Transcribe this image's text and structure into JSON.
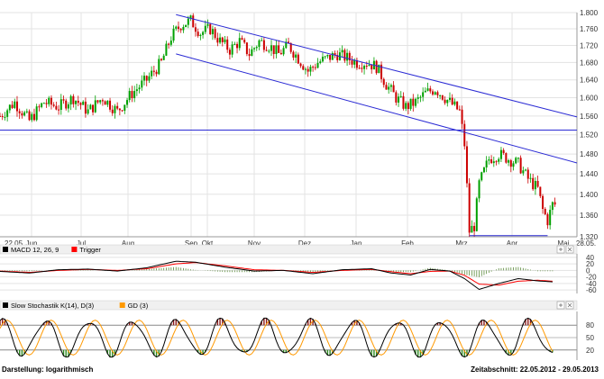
{
  "chart_data": [
    {
      "type": "candlestick",
      "scale": "log",
      "x_labels": [
        "22.05.",
        "Jun",
        "Jul",
        "Aug",
        "Sep",
        "Okt",
        "Nov",
        "Dez",
        "Jan",
        "Feb",
        "Mrz",
        "Apr",
        "Mai",
        "28.05."
      ],
      "y_ticks": [
        "1.320",
        "1.360",
        "1.400",
        "1.440",
        "1.480",
        "1.520",
        "1.560",
        "1.600",
        "1.640",
        "1.680",
        "1.720",
        "1.760",
        "1.800"
      ],
      "ylim": [
        1.32,
        1.8
      ],
      "grid": true,
      "price_path": [
        [
          0,
          1.56
        ],
        [
          3,
          1.59
        ],
        [
          6,
          1.55
        ],
        [
          9,
          1.59
        ],
        [
          12,
          1.58
        ],
        [
          15,
          1.6
        ],
        [
          18,
          1.57
        ],
        [
          21,
          1.6
        ],
        [
          24,
          1.57
        ],
        [
          27,
          1.61
        ],
        [
          30,
          1.64
        ],
        [
          33,
          1.68
        ],
        [
          35,
          1.74
        ],
        [
          37,
          1.77
        ],
        [
          39,
          1.78
        ],
        [
          41,
          1.75
        ],
        [
          43,
          1.76
        ],
        [
          45,
          1.73
        ],
        [
          47,
          1.71
        ],
        [
          49,
          1.73
        ],
        [
          51,
          1.7
        ],
        [
          53,
          1.73
        ],
        [
          55,
          1.72
        ],
        [
          57,
          1.7
        ],
        [
          59,
          1.72
        ],
        [
          61,
          1.69
        ],
        [
          63,
          1.66
        ],
        [
          65,
          1.68
        ],
        [
          67,
          1.69
        ],
        [
          69,
          1.7
        ],
        [
          71,
          1.69
        ],
        [
          73,
          1.68
        ],
        [
          75,
          1.68
        ],
        [
          77,
          1.67
        ],
        [
          79,
          1.63
        ],
        [
          81,
          1.6
        ],
        [
          83,
          1.58
        ],
        [
          85,
          1.59
        ],
        [
          87,
          1.61
        ],
        [
          89,
          1.62
        ],
        [
          91,
          1.6
        ],
        [
          93,
          1.58
        ],
        [
          94,
          1.57
        ],
        [
          95,
          1.5
        ],
        [
          96,
          1.33
        ],
        [
          97,
          1.34
        ],
        [
          98,
          1.42
        ],
        [
          100,
          1.47
        ],
        [
          102,
          1.48
        ],
        [
          104,
          1.47
        ],
        [
          106,
          1.46
        ],
        [
          108,
          1.43
        ],
        [
          110,
          1.41
        ],
        [
          111,
          1.37
        ],
        [
          112,
          1.35
        ],
        [
          113,
          1.38
        ]
      ],
      "trendlines": [
        {
          "name": "upper channel",
          "from": [
            36,
            1.795
          ],
          "to": [
            118,
            1.558
          ]
        },
        {
          "name": "lower channel",
          "from": [
            36,
            1.7
          ],
          "to": [
            118,
            1.462
          ]
        },
        {
          "name": "support",
          "from": [
            0,
            1.53
          ],
          "to": [
            118,
            1.53
          ]
        },
        {
          "name": "low",
          "from": [
            96,
            1.322
          ],
          "to": [
            112,
            1.322
          ]
        }
      ]
    },
    {
      "type": "line",
      "title": "MACD 12, 26, 9",
      "series": [
        {
          "name": "MACD 12, 26, 9",
          "color": "#000000"
        },
        {
          "name": "Trigger",
          "color": "#ff0000"
        }
      ],
      "y_ticks": [
        "40",
        "20",
        "0",
        "-20",
        "-40",
        "-60"
      ],
      "ylim": [
        -65,
        45
      ],
      "macd_path": [
        [
          0,
          -3
        ],
        [
          6,
          -8
        ],
        [
          12,
          2
        ],
        [
          18,
          4
        ],
        [
          24,
          -2
        ],
        [
          30,
          8
        ],
        [
          36,
          28
        ],
        [
          40,
          25
        ],
        [
          46,
          10
        ],
        [
          52,
          -2
        ],
        [
          58,
          0
        ],
        [
          64,
          -10
        ],
        [
          70,
          2
        ],
        [
          76,
          5
        ],
        [
          80,
          -8
        ],
        [
          84,
          -14
        ],
        [
          88,
          3
        ],
        [
          92,
          -2
        ],
        [
          95,
          -25
        ],
        [
          98,
          -58
        ],
        [
          102,
          -40
        ],
        [
          106,
          -25
        ],
        [
          110,
          -32
        ],
        [
          113,
          -35
        ]
      ],
      "trigger_path": [
        [
          0,
          -2
        ],
        [
          6,
          -6
        ],
        [
          12,
          0
        ],
        [
          18,
          3
        ],
        [
          24,
          0
        ],
        [
          30,
          5
        ],
        [
          36,
          20
        ],
        [
          40,
          24
        ],
        [
          46,
          14
        ],
        [
          52,
          2
        ],
        [
          58,
          0
        ],
        [
          64,
          -6
        ],
        [
          70,
          0
        ],
        [
          76,
          3
        ],
        [
          80,
          -4
        ],
        [
          84,
          -10
        ],
        [
          88,
          -3
        ],
        [
          92,
          -2
        ],
        [
          95,
          -15
        ],
        [
          98,
          -42
        ],
        [
          102,
          -45
        ],
        [
          106,
          -33
        ],
        [
          110,
          -30
        ],
        [
          113,
          -33
        ]
      ]
    },
    {
      "type": "line",
      "title": "Slow Stochastik K(14), D(3)",
      "series": [
        {
          "name": "Slow Stochastik K(14), D(3)",
          "color": "#000000"
        },
        {
          "name": "GD (3)",
          "color": "#ff9900"
        }
      ],
      "y_ticks": [
        "80",
        "50",
        "20"
      ],
      "ylim": [
        0,
        100
      ],
      "levels": [
        80,
        20
      ],
      "period": 9,
      "phase": 2
    }
  ],
  "footer": {
    "left": "Darstellung: logarithmisch",
    "right": "Zeitabschnitt: 22.05.2012 - 29.05.2013"
  },
  "colors": {
    "up": "#00a000",
    "down": "#cc0000",
    "trendline": "#2a2ad4",
    "grid": "#e3e3e3",
    "stoch_over": "#8b1a1a",
    "stoch_under": "#2e8b22"
  },
  "icons": [
    "expand-icon",
    "close-icon"
  ]
}
